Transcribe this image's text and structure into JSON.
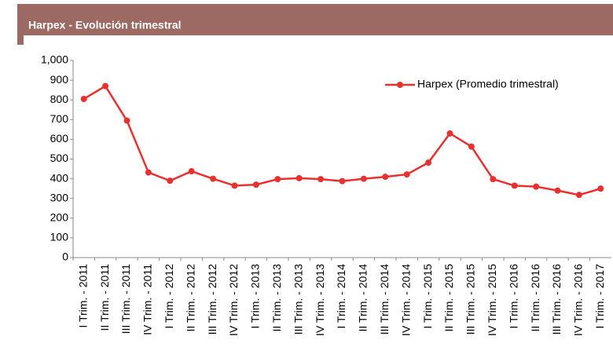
{
  "header": {
    "title": "Harpex - Evolución trimestral"
  },
  "chart_data": {
    "type": "line",
    "categories": [
      "I Trim. - 2011",
      "II Trim. - 2011",
      "III Trim. - 2011",
      "IV Trim. - 2011",
      "I Trim. - 2012",
      "II Trim. - 2012",
      "III Trim. - 2012",
      "IV Trim. - 2012",
      "I Trim. - 2013",
      "II Trim. - 2013",
      "III Trim. - 2013",
      "IV Trim. - 2013",
      "I Trim. - 2014",
      "II Trim. - 2014",
      "III Trim. - 2014",
      "IV Trim. - 2014",
      "I Trim. - 2015",
      "II Trim. - 2015",
      "III Trim. - 2015",
      "IV Trim. - 2015",
      "I Trim. - 2016",
      "II Trim. - 2016",
      "III Trim. - 2016",
      "IV Trim. - 2016",
      "I Trim. - 2017"
    ],
    "series": [
      {
        "name": "Harpex (Promedio trimestral)",
        "color": "#e8312f",
        "values": [
          805,
          870,
          695,
          432,
          390,
          438,
          400,
          365,
          370,
          398,
          403,
          398,
          388,
          400,
          410,
          422,
          482,
          630,
          563,
          398,
          365,
          360,
          340,
          318,
          350
        ]
      }
    ],
    "ylim": [
      0,
      1000
    ],
    "yticks": [
      0,
      100,
      200,
      300,
      400,
      500,
      600,
      700,
      800,
      900,
      {
        "value": 1000,
        "label": "1,000"
      }
    ],
    "legend": "upper right"
  }
}
